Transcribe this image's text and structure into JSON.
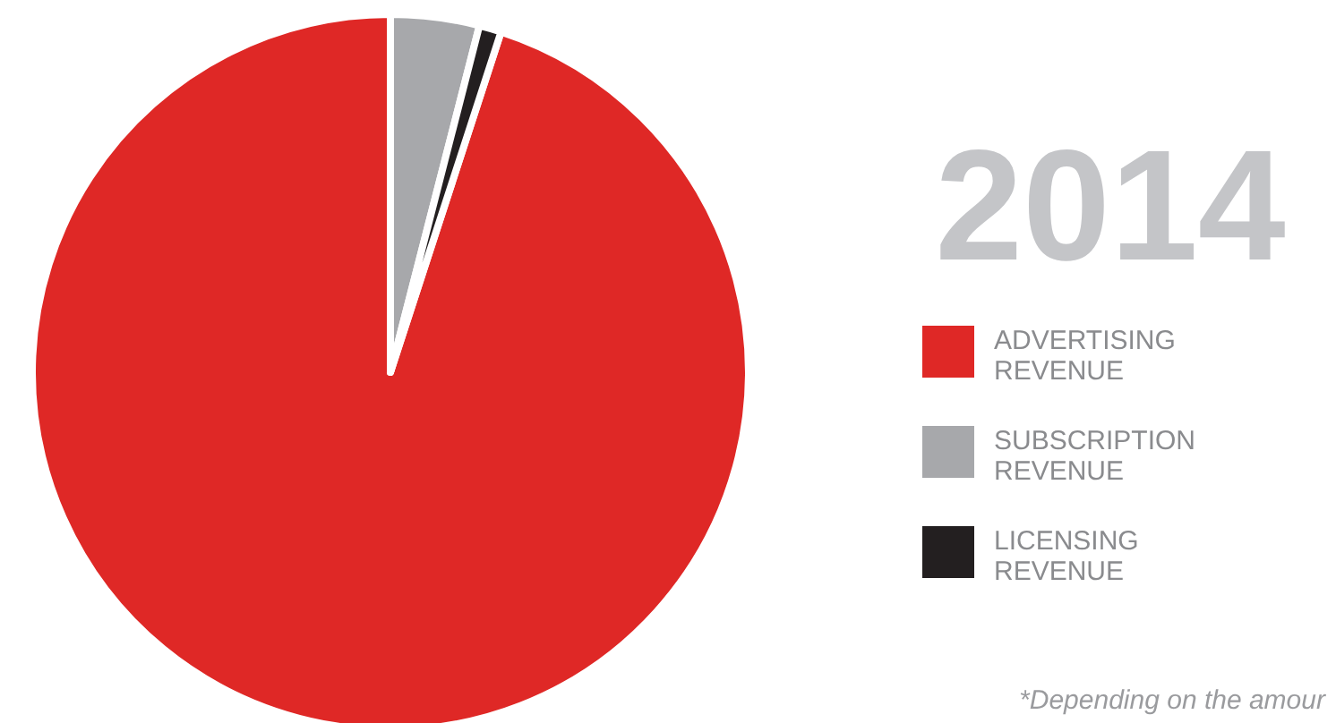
{
  "chart_data": {
    "type": "pie",
    "title": "2014",
    "categories": [
      "ADVERTISING REVENUE",
      "SUBSCRIPTION REVENUE",
      "LICENSING REVENUE"
    ],
    "values": [
      95,
      4,
      1
    ],
    "colors": [
      "#df2826",
      "#a7a8ab",
      "#231f20"
    ],
    "legend": "right",
    "annotations": [
      "*Depending on the amour"
    ]
  }
}
